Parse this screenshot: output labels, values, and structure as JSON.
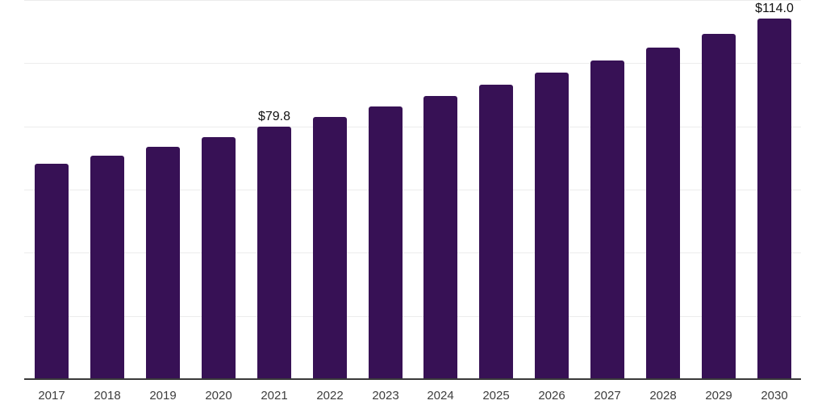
{
  "chart_data": {
    "type": "bar",
    "categories": [
      "2017",
      "2018",
      "2019",
      "2020",
      "2021",
      "2022",
      "2023",
      "2024",
      "2025",
      "2026",
      "2027",
      "2028",
      "2029",
      "2030"
    ],
    "values": [
      68.1,
      70.8,
      73.6,
      76.6,
      79.8,
      82.9,
      86.2,
      89.6,
      93.2,
      96.9,
      100.8,
      105.0,
      109.4,
      114.0
    ],
    "annotations": [
      {
        "category": "2021",
        "text": "$79.8"
      },
      {
        "category": "2030",
        "text": "$114.0"
      }
    ],
    "ylim": [
      0,
      120
    ],
    "grid_step": 20,
    "grid": "on",
    "legend": "none",
    "colors": {
      "bar": "#371155",
      "gridline": "#ececec",
      "axis_line": "#3a3a3a",
      "tick_label": "#3d3d3d",
      "value_label": "#101010",
      "background": "#ffffff"
    }
  }
}
